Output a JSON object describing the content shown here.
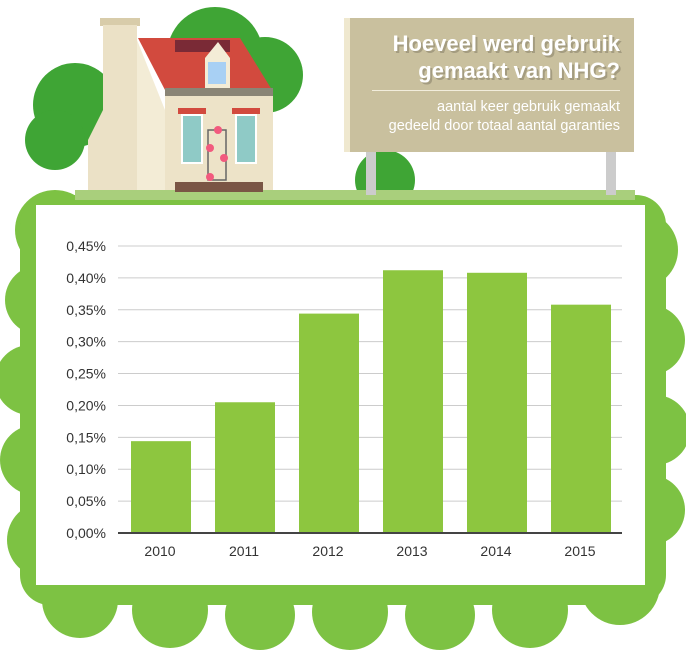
{
  "header": {
    "title": "Hoeveel werd gebruik gemaakt van NHG?",
    "subtitle_line1": "aantal keer gebruik gemaakt",
    "subtitle_line2": "gedeeld door totaal aantal garanties"
  },
  "colors": {
    "bar": "#8dc63f",
    "background_green": "#7dc243",
    "sign": "#c9c09e"
  },
  "chart_data": {
    "type": "bar",
    "title": "Hoeveel werd gebruik gemaakt van NHG?",
    "subtitle": "aantal keer gebruik gemaakt gedeeld door totaal aantal garanties",
    "categories": [
      "2010",
      "2011",
      "2012",
      "2013",
      "2014",
      "2015"
    ],
    "values": [
      0.144,
      0.205,
      0.344,
      0.412,
      0.408,
      0.358
    ],
    "unit": "%",
    "ylim": [
      0,
      0.45
    ],
    "yticks": [
      "0,00%",
      "0,05%",
      "0,10%",
      "0,15%",
      "0,20%",
      "0,25%",
      "0,30%",
      "0,35%",
      "0,40%",
      "0,45%"
    ],
    "grid": true,
    "legend": "none"
  }
}
